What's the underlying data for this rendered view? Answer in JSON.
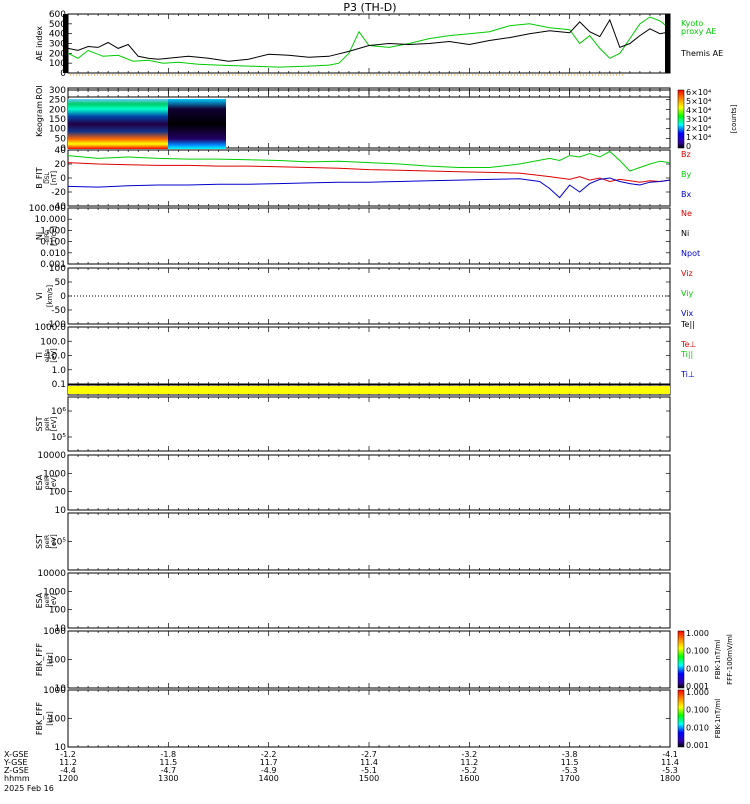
{
  "title": "P3 (TH-D)",
  "xaxis": {
    "rows": [
      {
        "label": "X-GSE",
        "values": [
          "-1.2",
          "",
          "-1.8",
          "",
          "-2.2",
          "",
          "-2.7",
          "",
          "-3.2",
          "",
          "-3.8",
          "",
          "-4.1"
        ]
      },
      {
        "label": "Y-GSE",
        "values": [
          "11.2",
          "",
          "11.5",
          "",
          "11.7",
          "",
          "11.4",
          "",
          "11.2",
          "",
          "11.5",
          "",
          "11.4"
        ]
      },
      {
        "label": "Z-GSE",
        "values": [
          "-4.4",
          "",
          "-4.7",
          "",
          "-4.9",
          "",
          "-5.1",
          "",
          "-5.2",
          "",
          "-5.3",
          "",
          "-5.3"
        ]
      },
      {
        "label": "hhmm",
        "values": [
          "1200",
          "",
          "1300",
          "",
          "1400",
          "",
          "1500",
          "",
          "1600",
          "",
          "1700",
          "",
          "1800"
        ]
      }
    ],
    "date": "2025 Feb 16",
    "xlim": [
      1200,
      1800
    ]
  },
  "colors": {
    "green": "#00cc00",
    "red": "#dd0000",
    "blue": "#0000cc",
    "black": "#000000",
    "orange": "#ff8800",
    "yellow": "#ffff00"
  },
  "chart_data": [
    {
      "type": "line",
      "ylabel": "AE index",
      "ylim": [
        0,
        600
      ],
      "yticks": [
        "0",
        "100",
        "200",
        "300",
        "400",
        "500",
        "600"
      ],
      "legend": [
        "Kyoto",
        "proxy AE",
        "Themis AE"
      ],
      "series": [
        {
          "name": "Kyoto proxy AE",
          "color": "#00cc00",
          "x": [
            1200,
            1210,
            1220,
            1235,
            1250,
            1265,
            1280,
            1295,
            1310,
            1330,
            1350,
            1380,
            1410,
            1440,
            1460,
            1470,
            1480,
            1490,
            1500,
            1520,
            1540,
            1560,
            1580,
            1600,
            1620,
            1640,
            1660,
            1680,
            1700,
            1710,
            1720,
            1730,
            1740,
            1750,
            1760,
            1770,
            1780,
            1790,
            1800
          ],
          "y": [
            200,
            150,
            230,
            170,
            180,
            120,
            130,
            100,
            110,
            90,
            80,
            70,
            60,
            70,
            80,
            100,
            200,
            420,
            280,
            260,
            300,
            350,
            380,
            400,
            420,
            480,
            500,
            460,
            440,
            300,
            380,
            250,
            150,
            200,
            350,
            500,
            570,
            530,
            450
          ]
        },
        {
          "name": "Themis AE",
          "color": "#000000",
          "x": [
            1200,
            1210,
            1220,
            1230,
            1240,
            1250,
            1260,
            1270,
            1280,
            1290,
            1300,
            1320,
            1340,
            1360,
            1380,
            1400,
            1420,
            1440,
            1460,
            1480,
            1500,
            1520,
            1540,
            1560,
            1580,
            1600,
            1620,
            1640,
            1660,
            1680,
            1700,
            1710,
            1720,
            1730,
            1740,
            1750,
            1760,
            1770,
            1780,
            1790,
            1800
          ],
          "y": [
            250,
            230,
            270,
            260,
            310,
            250,
            290,
            170,
            150,
            140,
            150,
            170,
            150,
            120,
            140,
            190,
            180,
            160,
            170,
            220,
            280,
            300,
            290,
            300,
            320,
            290,
            330,
            360,
            400,
            430,
            410,
            520,
            420,
            370,
            540,
            260,
            300,
            380,
            450,
            400,
            420
          ]
        }
      ]
    },
    {
      "type": "heatmap",
      "ylabel": "ROI",
      "ylim": [
        0,
        1
      ]
    },
    {
      "type": "heatmap",
      "ylabel": "Keogram",
      "ylim": [
        0,
        300
      ],
      "yticks": [
        "0",
        "50",
        "100",
        "150",
        "200",
        "250",
        "300"
      ],
      "colorbar": {
        "ticks": [
          "0",
          "1×10⁴",
          "2×10⁴",
          "3×10⁴",
          "4×10⁴",
          "5×10⁴",
          "6×10⁴"
        ],
        "label": "[counts]"
      }
    },
    {
      "type": "line",
      "ylabel": "B_FIT",
      "unit": "[nT]",
      "sublabel": "DSL",
      "ylim": [
        -40,
        40
      ],
      "yticks": [
        "-40",
        "-20",
        "0",
        "20",
        "40"
      ],
      "legend": [
        "Bz",
        "By",
        "Bx"
      ],
      "series": [
        {
          "name": "Bz",
          "color": "#dd0000",
          "x": [
            1200,
            1230,
            1260,
            1290,
            1320,
            1350,
            1380,
            1410,
            1440,
            1470,
            1500,
            1530,
            1560,
            1590,
            1620,
            1650,
            1680,
            1690,
            1700,
            1710,
            1720,
            1730,
            1740,
            1750,
            1760,
            1770,
            1780,
            1790,
            1800
          ],
          "y": [
            22,
            20,
            19,
            18,
            18,
            17,
            17,
            16,
            15,
            14,
            12,
            11,
            10,
            9,
            8,
            7,
            2,
            0,
            -2,
            2,
            -3,
            0,
            -5,
            -2,
            -4,
            -6,
            -4,
            -5,
            -3
          ]
        },
        {
          "name": "By",
          "color": "#00cc00",
          "x": [
            1200,
            1230,
            1260,
            1290,
            1320,
            1350,
            1380,
            1410,
            1440,
            1470,
            1500,
            1530,
            1560,
            1590,
            1620,
            1650,
            1680,
            1690,
            1700,
            1710,
            1720,
            1730,
            1740,
            1750,
            1760,
            1770,
            1780,
            1790,
            1800
          ],
          "y": [
            32,
            28,
            30,
            28,
            27,
            27,
            26,
            25,
            23,
            24,
            22,
            20,
            17,
            15,
            15,
            20,
            28,
            25,
            32,
            30,
            35,
            30,
            38,
            25,
            10,
            15,
            20,
            24,
            22
          ]
        },
        {
          "name": "Bx",
          "color": "#0000cc",
          "x": [
            1200,
            1230,
            1260,
            1290,
            1320,
            1350,
            1380,
            1410,
            1440,
            1470,
            1500,
            1530,
            1560,
            1590,
            1620,
            1650,
            1670,
            1680,
            1690,
            1700,
            1710,
            1720,
            1730,
            1740,
            1750,
            1760,
            1770,
            1780,
            1790,
            1800
          ],
          "y": [
            -12,
            -13,
            -11,
            -10,
            -10,
            -9,
            -9,
            -8,
            -7,
            -6,
            -6,
            -5,
            -4,
            -3,
            -2,
            -1,
            -5,
            -15,
            -28,
            -10,
            -20,
            -8,
            -2,
            0,
            -5,
            -8,
            -10,
            -6,
            -5,
            -3
          ]
        }
      ]
    },
    {
      "type": "line",
      "ylabel": "Ni",
      "unit": "[1/cc]",
      "sublabel": "eIRa",
      "ylim": [
        0.001,
        100
      ],
      "yticks": [
        "0.001",
        "0.010",
        "0.100",
        "1.000",
        "10.000",
        "100.000"
      ],
      "legend": [
        "Ne",
        "Ni",
        "Npot"
      ]
    },
    {
      "type": "line",
      "ylabel": "Vi",
      "unit": "[km/s]",
      "ylim": [
        -100,
        100
      ],
      "yticks": [
        "-100",
        "-50",
        "0",
        "50",
        "100"
      ],
      "legend": [
        "Viz",
        "Viy",
        "Vix"
      ]
    },
    {
      "type": "line",
      "ylabel": "Ti",
      "unit": "[eV]",
      "sublabel": "eIRa",
      "ylim": [
        0.1,
        1000
      ],
      "yticks": [
        "0.1",
        "1.0",
        "10.0",
        "100.0",
        "1000.0"
      ],
      "legend": [
        "Te||",
        "Te⊥",
        "Ti||",
        "Ti⊥"
      ]
    },
    {
      "type": "heatmap",
      "ylabel": "",
      "ylim": [
        0,
        1
      ]
    },
    {
      "type": "heatmap",
      "ylabel": "SST",
      "unit": "[eV]",
      "sublabel": "peIR",
      "yticks": [
        "10⁶",
        "10⁵"
      ]
    },
    {
      "type": "heatmap",
      "ylabel": "ESA",
      "unit": "[eV]",
      "sublabel": "peIR",
      "yticks": [
        "10",
        "100",
        "1000",
        "10000"
      ]
    },
    {
      "type": "heatmap",
      "ylabel": "SST",
      "unit": "[eV]",
      "sublabel": "peIR",
      "yticks": [
        "10⁵"
      ]
    },
    {
      "type": "heatmap",
      "ylabel": "ESA",
      "unit": "[eV]",
      "sublabel": "peIR",
      "yticks": [
        "10",
        "100",
        "1000",
        "10000"
      ]
    },
    {
      "type": "heatmap",
      "ylabel": "FBK_FFF",
      "unit": "[Hz]",
      "yticks": [
        "10",
        "100",
        "1000"
      ],
      "colorbar": {
        "ticks": [
          "0.001",
          "0.010",
          "0.100",
          "1.000"
        ],
        "label": "FBK-1nT/ml",
        "label2": "FFF-100mV/ml"
      }
    },
    {
      "type": "heatmap",
      "ylabel": "FBK_FFF",
      "unit": "[Hz]",
      "yticks": [
        "10",
        "100",
        "1000"
      ],
      "colorbar": {
        "ticks": [
          "0.001",
          "0.010",
          "0.100",
          "1.000"
        ],
        "label": "FBK-1nT/ml"
      }
    }
  ]
}
